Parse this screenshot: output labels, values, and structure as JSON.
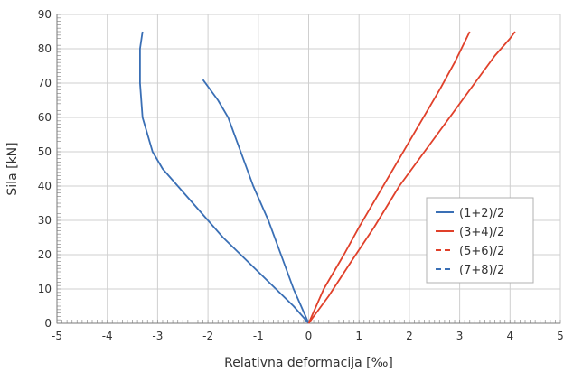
{
  "chart_data": {
    "type": "line",
    "xlabel": "Relativna deformacija [‰]",
    "ylabel": "Sila [kN]",
    "xlim": [
      -5,
      5
    ],
    "ylim": [
      0,
      90
    ],
    "xticks": [
      -5,
      -4,
      -3,
      -2,
      -1,
      0,
      1,
      2,
      3,
      4,
      5
    ],
    "yticks": [
      0,
      10,
      20,
      30,
      40,
      50,
      60,
      70,
      80,
      90
    ],
    "grid": true,
    "legend_position": "center-right",
    "series": [
      {
        "name": "(1+2)/2",
        "color": "#3a6fb5",
        "dash": "solid",
        "x": [
          0,
          -0.3,
          -0.65,
          -1.0,
          -1.35,
          -1.7,
          -2.0,
          -2.3,
          -2.6,
          -2.9,
          -3.1,
          -3.3,
          -3.35,
          -3.35,
          -3.3
        ],
        "y": [
          0,
          5,
          10,
          15,
          20,
          25,
          30,
          35,
          40,
          45,
          50,
          60,
          70,
          80,
          85
        ]
      },
      {
        "name": "(1+2)/2",
        "color": "#3a6fb5",
        "dash": "solid",
        "x": [
          0,
          -0.3,
          -0.55,
          -0.8,
          -1.1,
          -1.35,
          -1.6,
          -1.8,
          -1.95,
          -2.1
        ],
        "y": [
          0,
          10,
          20,
          30,
          40,
          50,
          60,
          65,
          68,
          71
        ]
      },
      {
        "name": "(3+4)/2",
        "color": "#e0402a",
        "dash": "solid",
        "x": [
          0,
          0.3,
          0.7,
          1.0,
          1.4,
          1.8,
          2.2,
          2.6,
          2.9,
          3.1,
          3.2
        ],
        "y": [
          0,
          10,
          20,
          28,
          38,
          48,
          58,
          68,
          76,
          82,
          85
        ]
      },
      {
        "name": "(3+4)/2",
        "color": "#e0402a",
        "dash": "solid",
        "x": [
          0,
          0.4,
          0.8,
          1.3,
          1.8,
          2.3,
          2.8,
          3.3,
          3.7,
          4.0,
          4.1
        ],
        "y": [
          0,
          8,
          17,
          28,
          40,
          50,
          60,
          70,
          78,
          83,
          85
        ]
      },
      {
        "name": "(5+6)/2",
        "color": "#e0402a",
        "dash": "dashed",
        "x": [],
        "y": []
      },
      {
        "name": "(7+8)/2",
        "color": "#3a6fb5",
        "dash": "dashed",
        "x": [],
        "y": []
      }
    ],
    "legend": [
      "(1+2)/2",
      "(3+4)/2",
      "(5+6)/2",
      "(7+8)/2"
    ]
  }
}
